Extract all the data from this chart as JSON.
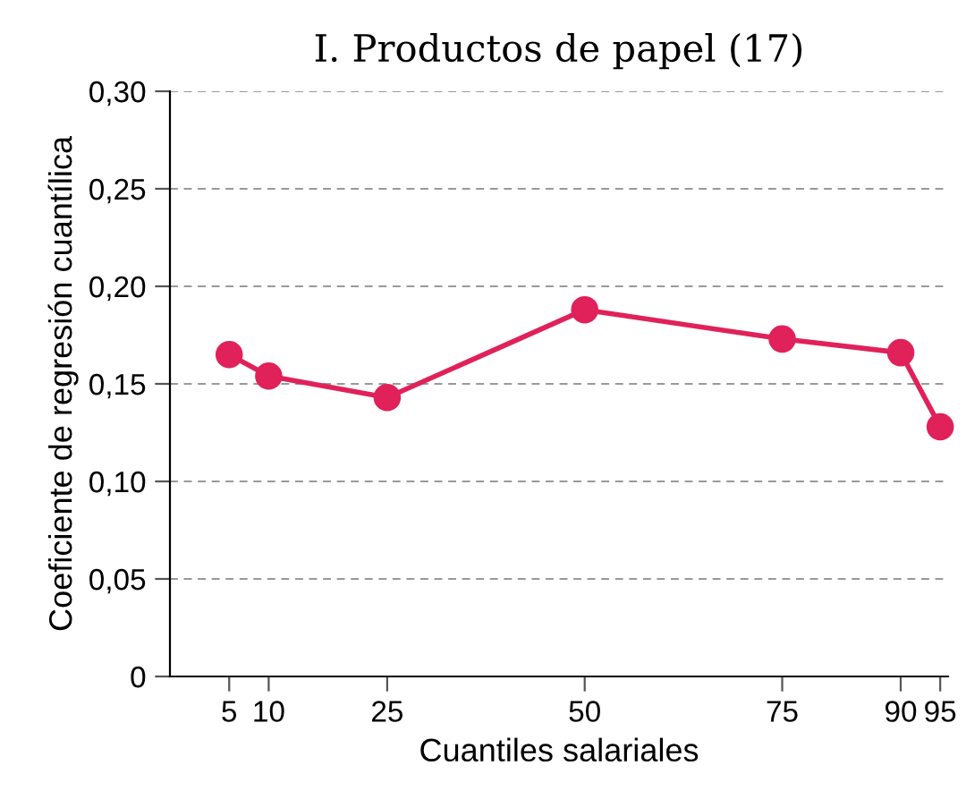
{
  "chart_data": {
    "type": "line",
    "title": "I. Productos de papel (17)",
    "xlabel": "Cuantiles salariales",
    "ylabel": "Coeficiente de regresión cuantílica",
    "x": [
      5,
      10,
      25,
      50,
      75,
      90,
      95
    ],
    "series": [
      {
        "color": "#e0215a",
        "values": [
          0.165,
          0.154,
          0.143,
          0.188,
          0.173,
          0.166,
          0.128
        ]
      }
    ],
    "xlim": [
      -2.5,
      96
    ],
    "xticks": [
      5,
      10,
      25,
      50,
      75,
      90,
      95
    ],
    "ylim": [
      0,
      0.3
    ],
    "yticks": [
      {
        "value": 0,
        "label": "0"
      },
      {
        "value": 0.05,
        "label": "0,05"
      },
      {
        "value": 0.1,
        "label": "0,10"
      },
      {
        "value": 0.15,
        "label": "0,15"
      },
      {
        "value": 0.2,
        "label": "0,20"
      },
      {
        "value": 0.25,
        "label": "0,25"
      },
      {
        "value": 0.3,
        "label": "0,30"
      }
    ],
    "grid": "y",
    "marker": "circle",
    "line_style": "solid"
  }
}
